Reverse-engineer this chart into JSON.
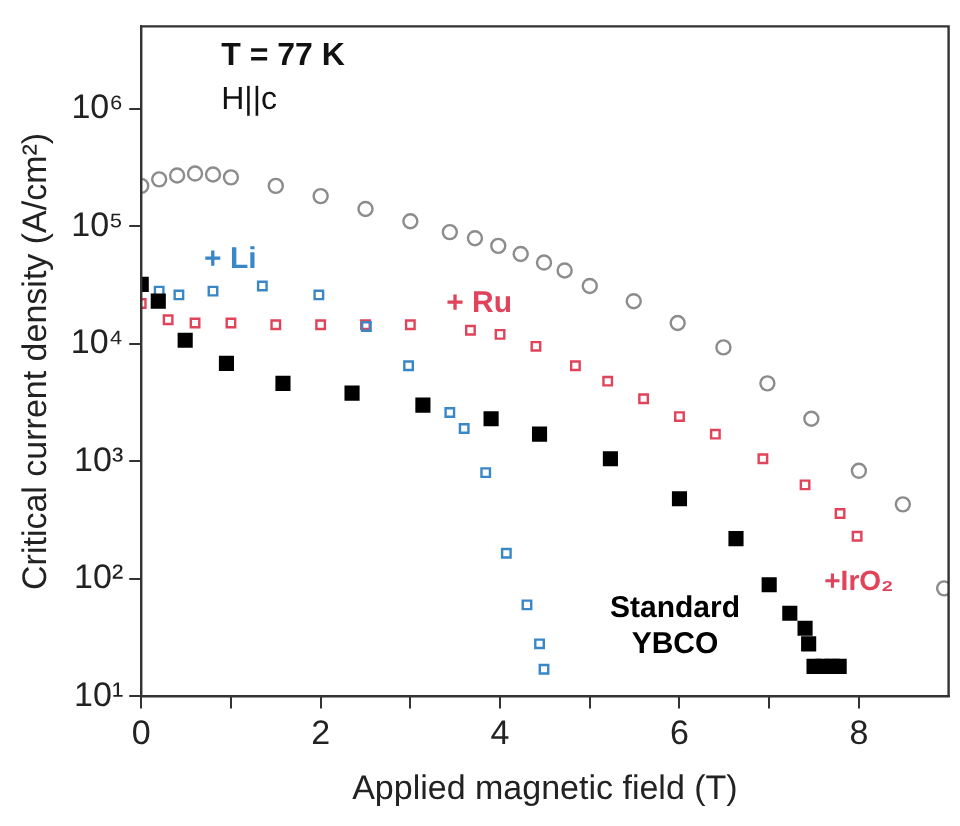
{
  "chart_data": {
    "type": "scatter",
    "xlabel": "Applied magnetic field (T)",
    "ylabel": "Critical current density (A/cm²)",
    "log": "y",
    "grid": false,
    "legend": false,
    "xlim": [
      0,
      9
    ],
    "xticks": [
      0,
      {
        "value": 1,
        "label": null
      },
      2,
      {
        "value": 3,
        "label": null
      },
      4,
      {
        "value": 5,
        "label": null
      },
      6,
      {
        "value": 7,
        "label": null
      },
      8
    ],
    "ylim": [
      10,
      5000000
    ],
    "yticks": [
      {
        "value": 10,
        "label": "10¹"
      },
      {
        "value": 100,
        "label": "10²"
      },
      {
        "value": 1000,
        "label": "10³"
      },
      {
        "value": 10000,
        "label": "10⁴"
      },
      {
        "value": 100000,
        "label": "10⁵"
      },
      {
        "value": 1000000,
        "label": "10⁶"
      }
    ],
    "series": [
      {
        "color": "#8c8c8c",
        "marker": "circle",
        "x": [
          0,
          0.2,
          0.4,
          0.6,
          0.8,
          1.0,
          1.5,
          2.0,
          2.5,
          3.0,
          3.44,
          3.72,
          3.98,
          4.23,
          4.49,
          4.72,
          5.0,
          5.49,
          5.98,
          6.49,
          6.98,
          7.47,
          8.0,
          8.49,
          8.95
        ],
        "values": [
          220000,
          250000,
          270000,
          280000,
          275000,
          260000,
          220000,
          180000,
          140000,
          110000,
          89000,
          79000,
          68000,
          58000,
          49000,
          42000,
          31000,
          23000,
          15000,
          9300,
          4600,
          2300,
          830,
          430,
          83
        ]
      },
      {
        "name": "+ Ru",
        "color": "#e0435a",
        "marker": "square",
        "x": [
          0,
          0.3,
          0.6,
          1.0,
          1.5,
          2.0,
          2.5,
          3.0,
          3.67,
          4.0,
          4.4,
          4.84,
          5.2,
          5.6,
          6.0,
          6.4,
          6.93,
          7.4,
          7.79,
          7.98
        ],
        "values": [
          22000,
          16000,
          15000,
          15000,
          14500,
          14500,
          14500,
          14500,
          13000,
          12000,
          9500,
          6500,
          4800,
          3400,
          2400,
          1700,
          1050,
          630,
          360,
          230
        ]
      },
      {
        "name": "+ Li",
        "color": "#3a87c8",
        "marker": "square",
        "x": [
          0.2,
          0.42,
          0.8,
          1.35,
          1.98,
          2.51,
          2.98,
          3.44,
          3.6,
          3.84,
          4.07,
          4.3,
          4.44,
          4.49
        ],
        "values": [
          28000,
          26000,
          28000,
          31000,
          26000,
          14000,
          6500,
          2600,
          1900,
          800,
          165,
          60,
          28,
          17
        ]
      },
      {
        "name": "Standard YBCO",
        "color": "#000000",
        "marker": "square",
        "x": [
          0,
          0.19,
          0.49,
          0.95,
          1.58,
          2.35,
          3.14,
          3.9,
          4.44,
          5.23,
          6.0,
          6.63,
          7.0,
          7.23,
          7.4,
          7.44,
          7.5,
          7.6,
          7.7,
          7.78
        ],
        "values": [
          32000,
          23000,
          10700,
          6800,
          4600,
          3800,
          3000,
          2300,
          1700,
          1050,
          480,
          220,
          89,
          51,
          38,
          28,
          18,
          18,
          18,
          18
        ]
      }
    ],
    "annotations": [
      "T = 77 K",
      "H||c",
      {
        "text": "+IrO₂",
        "x": 8,
        "y": 230
      }
    ]
  }
}
